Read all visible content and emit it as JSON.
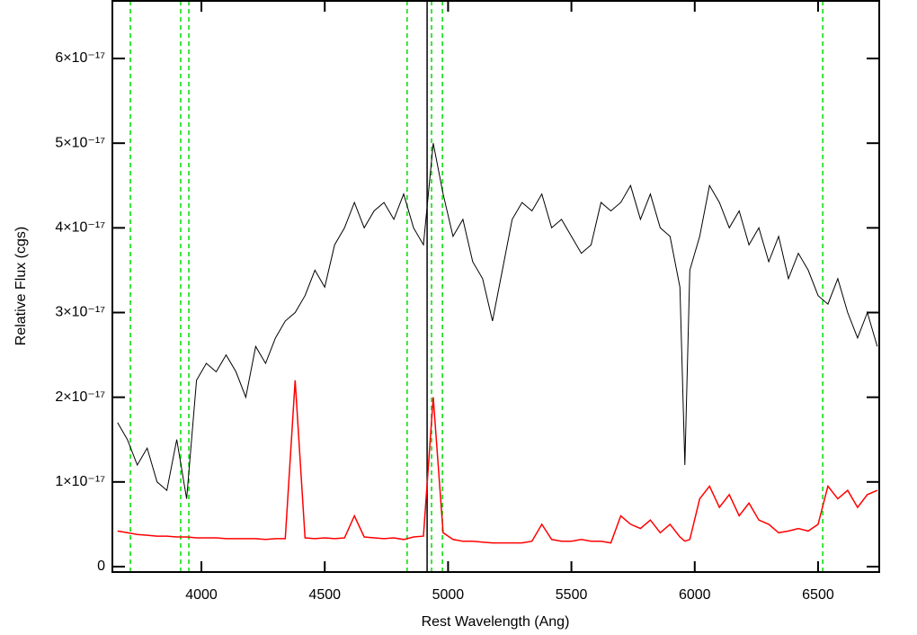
{
  "chart_data": {
    "type": "line",
    "x_label": "Rest Wavelength (Ang)",
    "y_label": "Relative Flux (cgs)",
    "x": [
      3660,
      3700,
      3740,
      3780,
      3820,
      3860,
      3900,
      3940,
      3980,
      4020,
      4060,
      4100,
      4140,
      4180,
      4220,
      4260,
      4300,
      4340,
      4380,
      4420,
      4460,
      4500,
      4540,
      4580,
      4620,
      4660,
      4700,
      4740,
      4780,
      4820,
      4860,
      4900,
      4940,
      4980,
      5020,
      5060,
      5100,
      5140,
      5180,
      5220,
      5260,
      5300,
      5340,
      5380,
      5420,
      5460,
      5500,
      5540,
      5580,
      5620,
      5660,
      5700,
      5740,
      5780,
      5820,
      5860,
      5900,
      5940,
      5960,
      5980,
      6020,
      6060,
      6100,
      6140,
      6180,
      6220,
      6260,
      6300,
      6340,
      6380,
      6420,
      6460,
      6500,
      6540,
      6580,
      6620,
      6660,
      6700,
      6740
    ],
    "series": [
      {
        "color": "#000000",
        "values": [
          1.7e-17,
          1.5e-17,
          1.2e-17,
          1.4e-17,
          1e-17,
          9e-18,
          1.5e-17,
          8e-18,
          2.2e-17,
          2.4e-17,
          2.3e-17,
          2.5e-17,
          2.3e-17,
          2e-17,
          2.6e-17,
          2.4e-17,
          2.7e-17,
          2.9e-17,
          3e-17,
          3.2e-17,
          3.5e-17,
          3.3e-17,
          3.8e-17,
          4e-17,
          4.3e-17,
          4e-17,
          4.2e-17,
          4.3e-17,
          4.1e-17,
          4.4e-17,
          4e-17,
          3.8e-17,
          5e-17,
          4.4e-17,
          3.9e-17,
          4.1e-17,
          3.6e-17,
          3.4e-17,
          2.9e-17,
          3.5e-17,
          4.1e-17,
          4.3e-17,
          4.2e-17,
          4.4e-17,
          4e-17,
          4.1e-17,
          3.9e-17,
          3.7e-17,
          3.8e-17,
          4.3e-17,
          4.2e-17,
          4.3e-17,
          4.5e-17,
          4.1e-17,
          4.4e-17,
          4e-17,
          3.9e-17,
          3.3e-17,
          1.2e-17,
          3.5e-17,
          3.9e-17,
          4.5e-17,
          4.3e-17,
          4e-17,
          4.2e-17,
          3.8e-17,
          4e-17,
          3.6e-17,
          3.9e-17,
          3.4e-17,
          3.7e-17,
          3.5e-17,
          3.2e-17,
          3.1e-17,
          3.4e-17,
          3e-17,
          2.7e-17,
          3e-17,
          2.6e-17
        ]
      },
      {
        "color": "#ff0000",
        "values": [
          4.2e-18,
          4e-18,
          3.8e-18,
          3.7e-18,
          3.6e-18,
          3.6e-18,
          3.5e-18,
          3.5e-18,
          3.4e-18,
          3.4e-18,
          3.4e-18,
          3.3e-18,
          3.3e-18,
          3.3e-18,
          3.3e-18,
          3.2e-18,
          3.3e-18,
          3.3e-18,
          2.2e-17,
          3.4e-18,
          3.3e-18,
          3.4e-18,
          3.3e-18,
          3.4e-18,
          6e-18,
          3.5e-18,
          3.4e-18,
          3.3e-18,
          3.4e-18,
          3.2e-18,
          3.5e-18,
          3.6e-18,
          2e-17,
          4e-18,
          3.2e-18,
          3e-18,
          3e-18,
          2.9e-18,
          2.8e-18,
          2.8e-18,
          2.8e-18,
          2.8e-18,
          3e-18,
          5e-18,
          3.2e-18,
          3e-18,
          3e-18,
          3.2e-18,
          3e-18,
          3e-18,
          2.8e-18,
          6e-18,
          5e-18,
          4.5e-18,
          5.5e-18,
          4e-18,
          5e-18,
          3.5e-18,
          3e-18,
          3.2e-18,
          8e-18,
          9.5e-18,
          7e-18,
          8.5e-18,
          6e-18,
          7.5e-18,
          5.5e-18,
          5e-18,
          4e-18,
          4.2e-18,
          4.5e-18,
          4.2e-18,
          5e-18,
          9.5e-18,
          8e-18,
          9e-18,
          7e-18,
          8.5e-18,
          9e-18
        ]
      }
    ],
    "reference_lines": {
      "color": "#00dd00",
      "x": [
        3712,
        3916,
        3949,
        4834,
        4933,
        4977,
        6519
      ]
    },
    "marker_line": {
      "color": "#000000",
      "x": 4915
    },
    "xlim": [
      3639,
      6748
    ],
    "ylim": [
      -6.4e-19,
      6.68e-17
    ],
    "xticks": [
      4000,
      4500,
      5000,
      5500,
      6000,
      6500
    ],
    "yticks": [
      0,
      {
        "value": 1e-17,
        "label": "1×10⁻¹⁷"
      },
      {
        "value": 2e-17,
        "label": "2×10⁻¹⁷"
      },
      {
        "value": 3e-17,
        "label": "3×10⁻¹⁷"
      },
      {
        "value": 4e-17,
        "label": "4×10⁻¹⁷"
      },
      {
        "value": 5e-17,
        "label": "5×10⁻¹⁷"
      },
      {
        "value": 6e-17,
        "label": "6×10⁻¹⁷"
      }
    ]
  }
}
